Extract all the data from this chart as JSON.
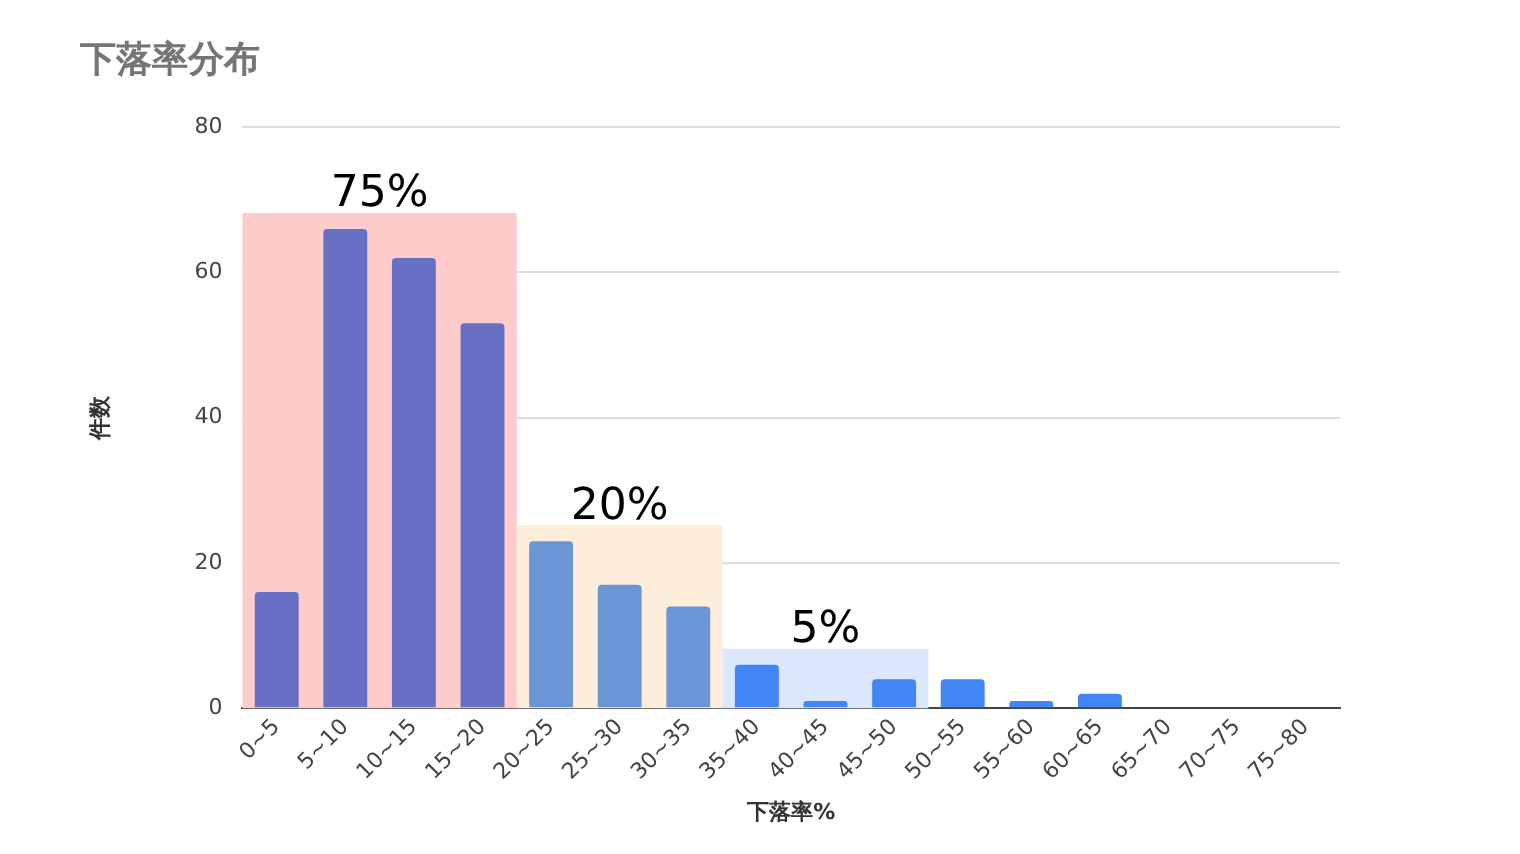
{
  "chart_data": {
    "type": "bar",
    "title": "下落率分布",
    "xlabel": "下落率%",
    "ylabel": "件数",
    "categories": [
      "0~5",
      "5~10",
      "10~15",
      "15~20",
      "20~25",
      "25~30",
      "30~35",
      "35~40",
      "40~45",
      "45~50",
      "50~55",
      "55~60",
      "60~65",
      "65~70",
      "70~75",
      "75~80"
    ],
    "values": [
      16,
      66,
      62,
      53,
      23,
      17,
      14,
      6,
      1,
      4,
      4,
      1,
      2,
      0,
      0,
      0
    ],
    "colors": [
      "#6770c4",
      "#6770c4",
      "#6770c4",
      "#6770c4",
      "#6a95d6",
      "#6a95d6",
      "#6a95d6",
      "#4285f4",
      "#4285f4",
      "#4285f4",
      "#4285f4",
      "#4285f4",
      "#4285f4",
      "#4285f4",
      "#4285f4",
      "#4285f4"
    ],
    "bands": [
      {
        "axis": "x",
        "from": "0~5",
        "to": "15~20",
        "label": "75%",
        "color": "#ffcccc"
      },
      {
        "axis": "x",
        "from": "20~25",
        "to": "30~35",
        "label": "20%",
        "color": "#fdeedb"
      },
      {
        "axis": "x",
        "from": "35~40",
        "to": "45~50",
        "label": "5%",
        "color": "#dbe7fb"
      }
    ],
    "ylim": [
      0,
      80
    ],
    "yticks": [
      0,
      20,
      40,
      60,
      80
    ],
    "grid": "y",
    "legend": false
  }
}
